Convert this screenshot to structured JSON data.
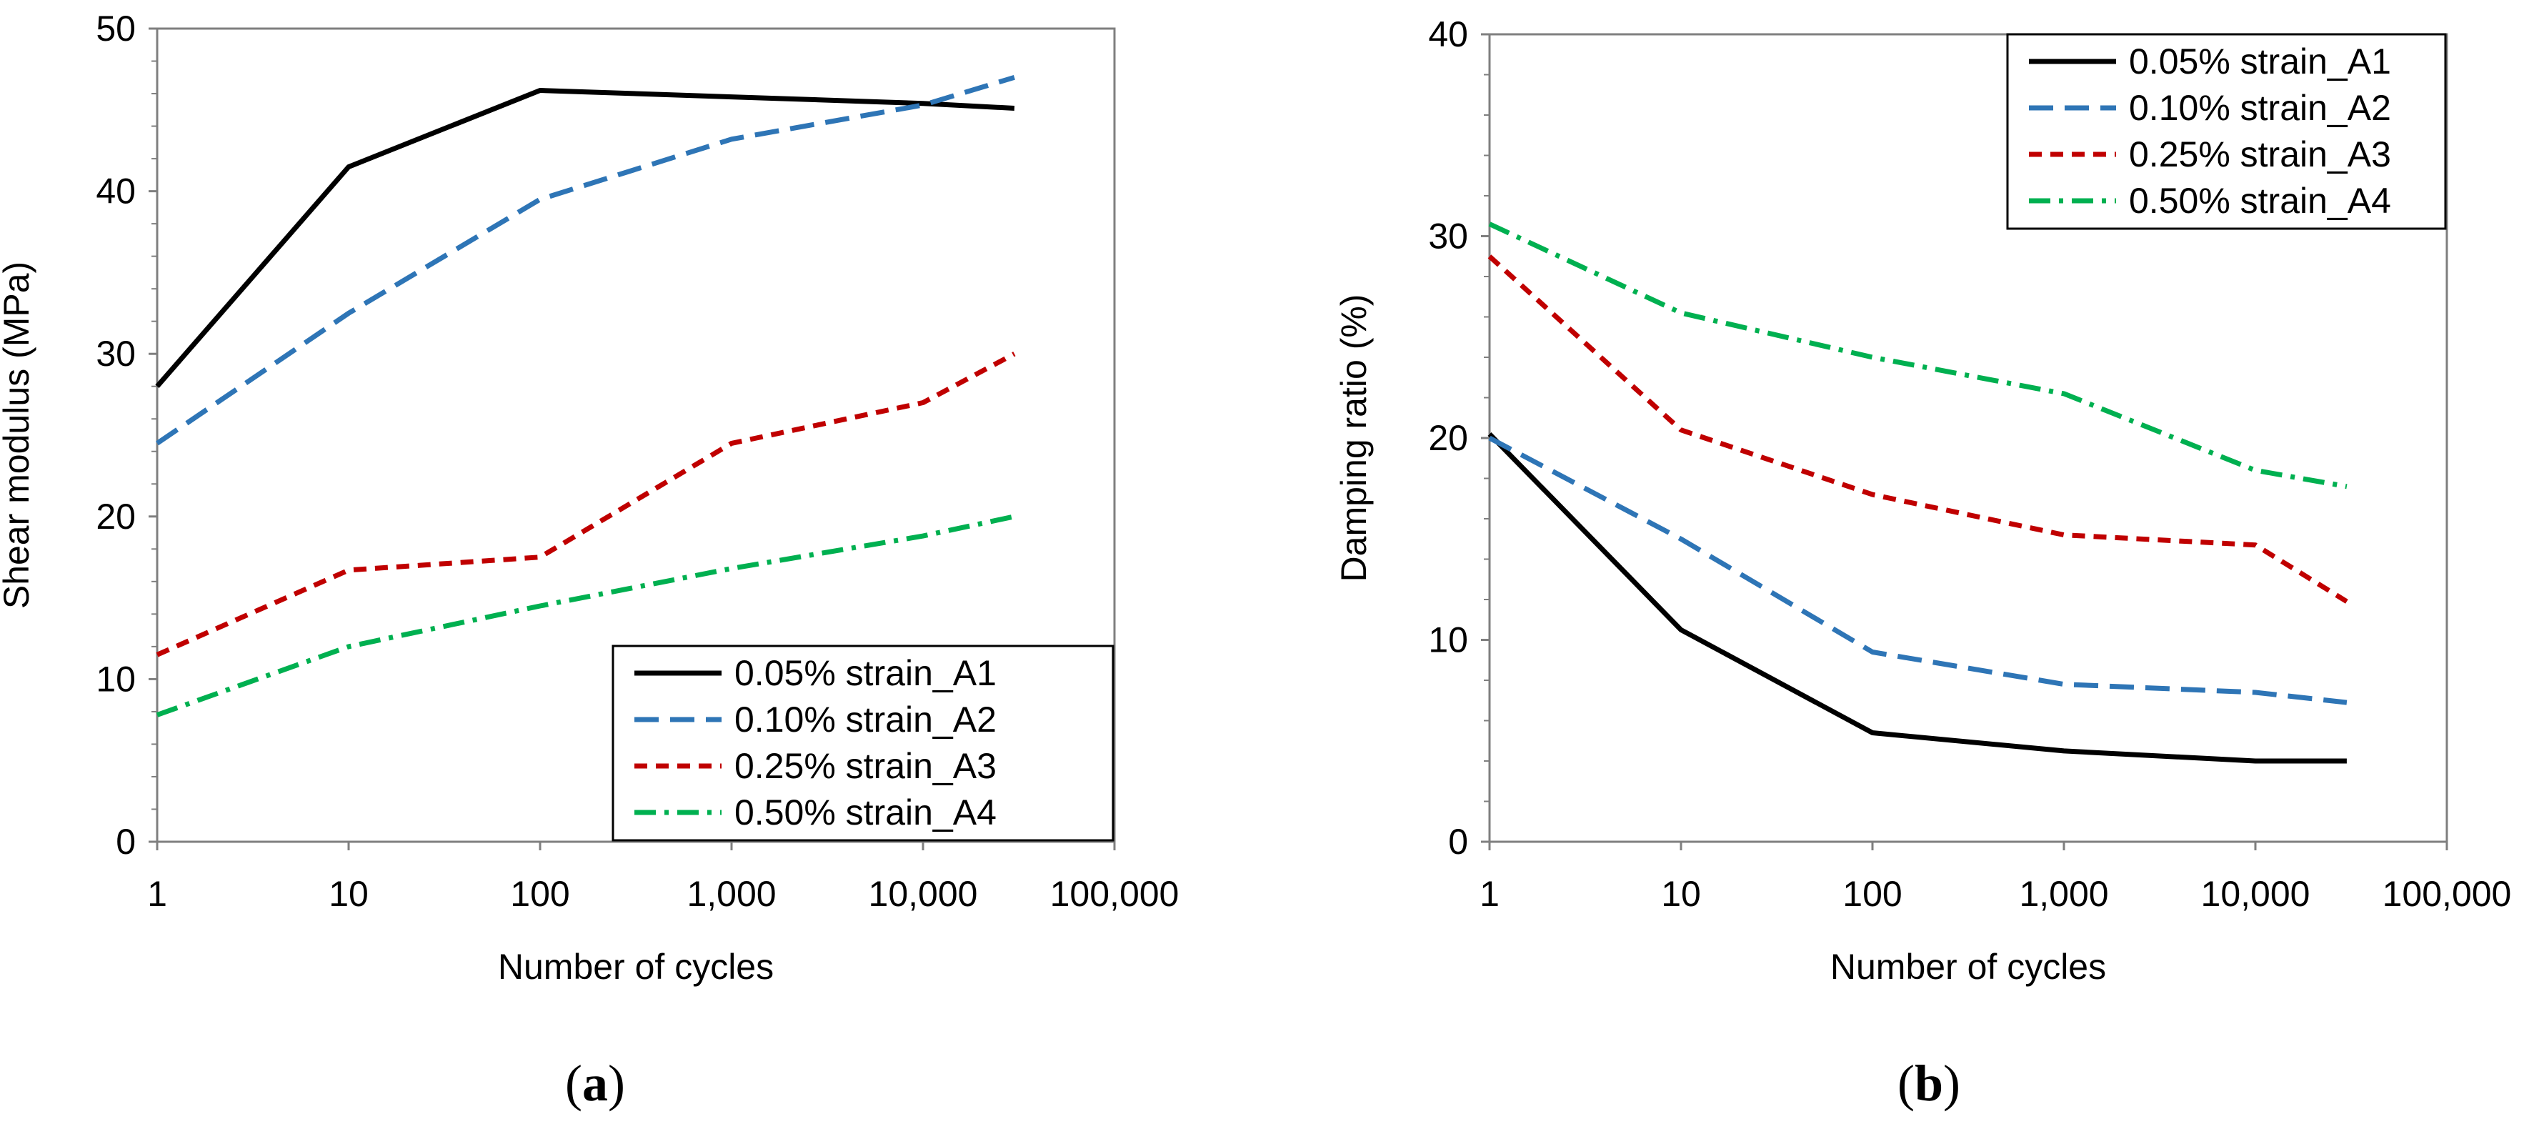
{
  "colors": {
    "series_1": "#000000",
    "series_2": "#2e75b6",
    "series_3": "#c00000",
    "series_4": "#00b050",
    "axis": "#7f7f7f",
    "legend_border": "#000000"
  },
  "chart_data": [
    {
      "type": "line",
      "panel": "(a)",
      "panel_letter": "a",
      "xlabel": "Number of cycles",
      "ylabel": "Shear modulus (MPa)",
      "xscale": "log",
      "xlim": [
        1,
        100000
      ],
      "ylim": [
        0,
        50
      ],
      "x_ticks": [
        1,
        10,
        100,
        1000,
        10000,
        100000
      ],
      "x_tick_labels": [
        "1",
        "10",
        "100",
        "1,000",
        "10,000",
        "100,000"
      ],
      "y_ticks": [
        0,
        10,
        20,
        30,
        40,
        50
      ],
      "y_tick_labels": [
        "0",
        "10",
        "20",
        "30",
        "40",
        "50"
      ],
      "legend_position": "bottom-right",
      "x": [
        1,
        10,
        100,
        1000,
        10000,
        30000
      ],
      "series": [
        {
          "name": "0.05% strain_A1",
          "style": "solid",
          "values": [
            28.0,
            41.5,
            46.2,
            45.8,
            45.4,
            45.1
          ]
        },
        {
          "name": "0.10% strain_A2",
          "style": "dash",
          "values": [
            24.5,
            32.5,
            39.5,
            43.2,
            45.3,
            47.0
          ]
        },
        {
          "name": "0.25% strain_A3",
          "style": "short-dash",
          "values": [
            11.5,
            16.7,
            17.5,
            24.5,
            27.0,
            30.0
          ]
        },
        {
          "name": "0.50% strain_A4",
          "style": "dash-dot",
          "values": [
            7.8,
            12.0,
            14.5,
            16.8,
            18.8,
            20.0
          ]
        }
      ]
    },
    {
      "type": "line",
      "panel": "(b)",
      "panel_letter": "b",
      "xlabel": "Number of cycles",
      "ylabel": "Damping ratio (%)",
      "xscale": "log",
      "xlim": [
        1,
        100000
      ],
      "ylim": [
        0,
        40
      ],
      "x_ticks": [
        1,
        10,
        100,
        1000,
        10000,
        100000
      ],
      "x_tick_labels": [
        "1",
        "10",
        "100",
        "1,000",
        "10,000",
        "100,000"
      ],
      "y_ticks": [
        0,
        10,
        20,
        30,
        40
      ],
      "y_tick_labels": [
        "0",
        "10",
        "20",
        "30",
        "40"
      ],
      "legend_position": "top-right",
      "x": [
        1,
        10,
        100,
        1000,
        10000,
        30000
      ],
      "series": [
        {
          "name": "0.05% strain_A1",
          "style": "solid",
          "values": [
            20.2,
            10.5,
            5.4,
            4.5,
            4.0,
            4.0
          ]
        },
        {
          "name": "0.10% strain_A2",
          "style": "dash",
          "values": [
            20.0,
            15.0,
            9.4,
            7.8,
            7.4,
            6.9
          ]
        },
        {
          "name": "0.25% strain_A3",
          "style": "short-dash",
          "values": [
            29.0,
            20.4,
            17.2,
            15.2,
            14.7,
            11.9
          ]
        },
        {
          "name": "0.50% strain_A4",
          "style": "dash-dot",
          "values": [
            30.6,
            26.2,
            24.0,
            22.2,
            18.4,
            17.6
          ]
        }
      ]
    }
  ]
}
